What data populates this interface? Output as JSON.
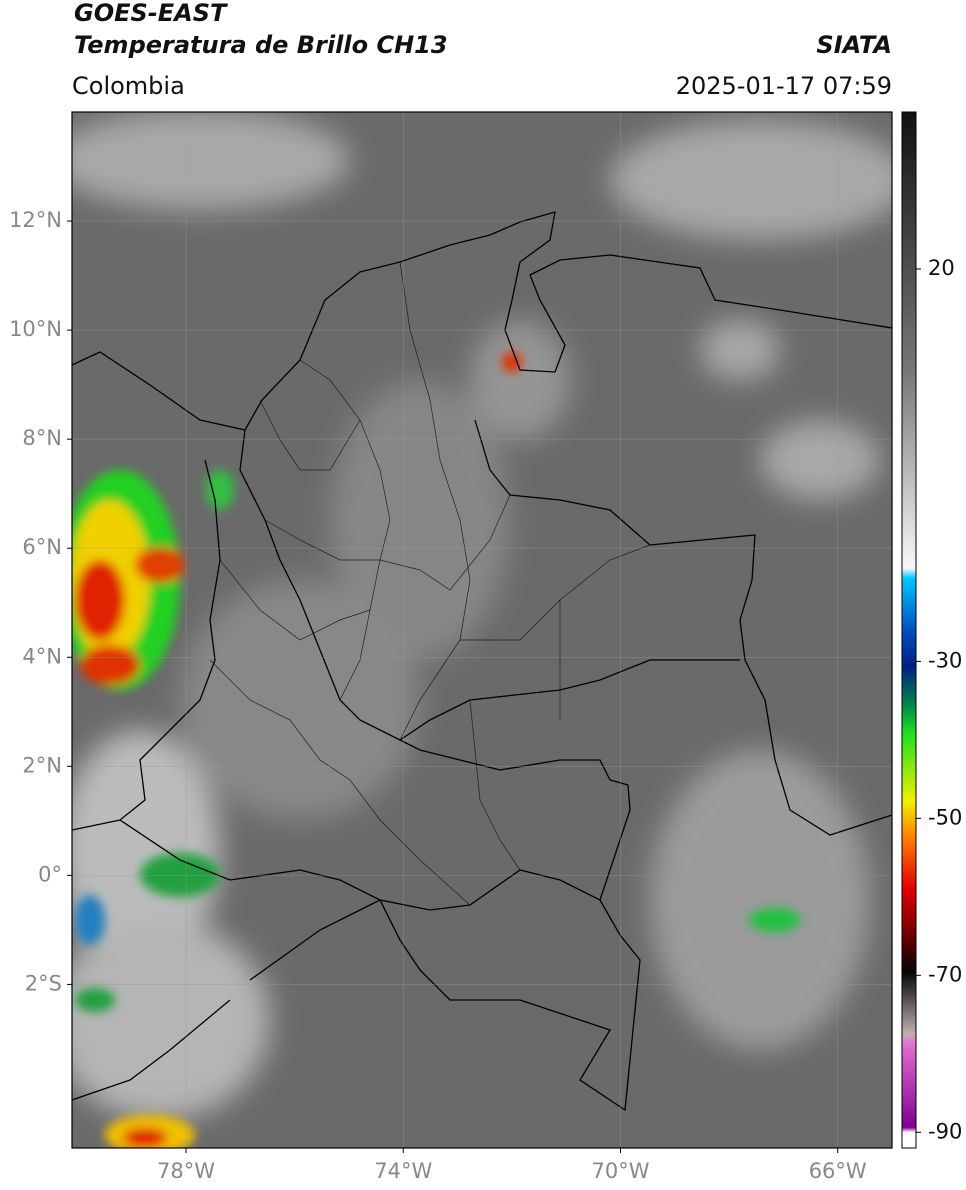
{
  "header": {
    "title": "GOES-EAST",
    "subtitle": "Temperatura de Brillo CH13",
    "source": "SIATA",
    "region": "Colombia",
    "timestamp": "2025-01-17 07:59"
  },
  "map": {
    "xlim": [
      -80.1,
      -65.0
    ],
    "ylim": [
      -5,
      14
    ],
    "xticks": [
      {
        "value": -78,
        "label": "78°W"
      },
      {
        "value": -74,
        "label": "74°W"
      },
      {
        "value": -70,
        "label": "70°W"
      },
      {
        "value": -66,
        "label": "66°W"
      }
    ],
    "yticks": [
      {
        "value": 12,
        "label": "12°N"
      },
      {
        "value": 10,
        "label": "10°N"
      },
      {
        "value": 8,
        "label": "8°N"
      },
      {
        "value": 6,
        "label": "6°N"
      },
      {
        "value": 4,
        "label": "4°N"
      },
      {
        "value": 2,
        "label": "2°N"
      },
      {
        "value": 0,
        "label": "0°"
      },
      {
        "value": -2,
        "label": "2°S"
      }
    ]
  },
  "colorbar": {
    "lim": [
      -92,
      40
    ],
    "ticks": [
      20,
      -30,
      -50,
      -70,
      -90
    ]
  }
}
